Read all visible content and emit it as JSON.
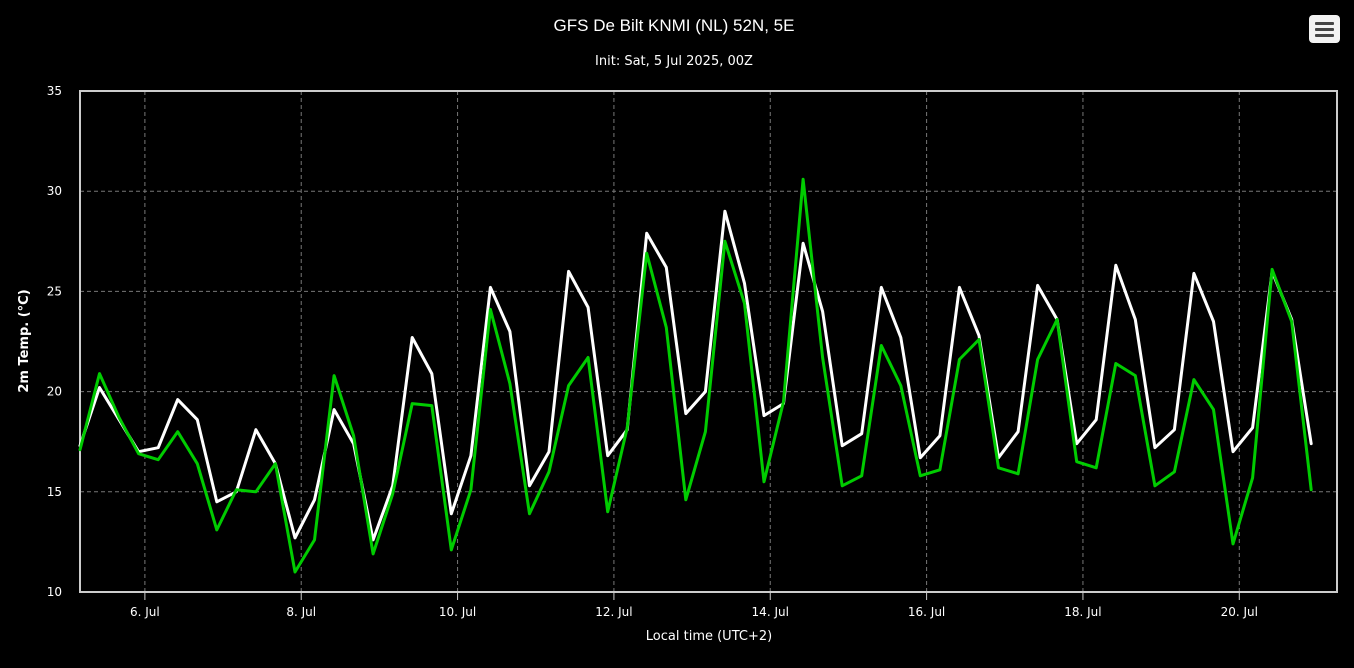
{
  "chart_data": {
    "type": "line",
    "title": "GFS De Bilt KNMI (NL) 52N, 5E",
    "subtitle": "Init: Sat, 5 Jul 2025, 00Z",
    "xlabel": "Local time (UTC+2)",
    "ylabel": "2m Temp. (°C)",
    "ylim": [
      10,
      35
    ],
    "yticks": [
      "10",
      "15",
      "20",
      "25",
      "30",
      "35"
    ],
    "xticks": [
      {
        "day": 6,
        "label": "6. Jul"
      },
      {
        "day": 8,
        "label": "8. Jul"
      },
      {
        "day": 10,
        "label": "10. Jul"
      },
      {
        "day": 12,
        "label": "12. Jul"
      },
      {
        "day": 14,
        "label": "14. Jul"
      },
      {
        "day": 16,
        "label": "16. Jul"
      },
      {
        "day": 18,
        "label": "18. Jul"
      },
      {
        "day": 20,
        "label": "20. Jul"
      }
    ],
    "xlim_days": [
      5.17,
      21.25
    ],
    "x_step_hours": 6,
    "x_start": "5 Jul 08:00",
    "grid": true,
    "legend": "none",
    "series": [
      {
        "color": "#ffffff",
        "values": [
          17.3,
          20.2,
          18.6,
          17.0,
          17.2,
          19.6,
          18.6,
          14.5,
          15.0,
          18.1,
          16.4,
          12.7,
          14.6,
          19.1,
          17.4,
          12.6,
          15.3,
          22.7,
          20.9,
          13.9,
          16.8,
          25.2,
          23.0,
          15.3,
          17.0,
          26.0,
          24.2,
          16.8,
          18.1,
          27.9,
          26.2,
          18.9,
          20.0,
          29.0,
          25.4,
          18.8,
          19.4,
          27.4,
          24.0,
          17.3,
          17.9,
          25.2,
          22.7,
          16.7,
          17.8,
          25.2,
          22.8,
          16.7,
          18.0,
          25.3,
          23.6,
          17.4,
          18.6,
          26.3,
          23.6,
          17.2,
          18.1,
          25.9,
          23.5,
          17.0,
          18.2,
          26.0,
          23.6,
          17.4
        ]
      },
      {
        "color": "#00cc00",
        "values": [
          17.1,
          20.9,
          18.7,
          16.9,
          16.6,
          18.0,
          16.4,
          13.1,
          15.1,
          15.0,
          16.4,
          11.0,
          12.6,
          20.8,
          17.8,
          11.9,
          14.9,
          19.4,
          19.3,
          12.1,
          15.1,
          24.1,
          20.4,
          13.9,
          16.0,
          20.3,
          21.7,
          14.0,
          18.2,
          26.9,
          23.2,
          14.6,
          18.0,
          27.5,
          24.4,
          15.5,
          19.5,
          30.6,
          21.7,
          15.3,
          15.8,
          22.3,
          20.3,
          15.8,
          16.1,
          21.6,
          22.6,
          16.2,
          15.9,
          21.6,
          23.6,
          16.5,
          16.2,
          21.4,
          20.8,
          15.3,
          16.0,
          20.6,
          19.1,
          12.4,
          15.7,
          26.1,
          23.5,
          15.1
        ]
      }
    ]
  },
  "icons": {
    "menu": "hamburger-menu-icon"
  }
}
